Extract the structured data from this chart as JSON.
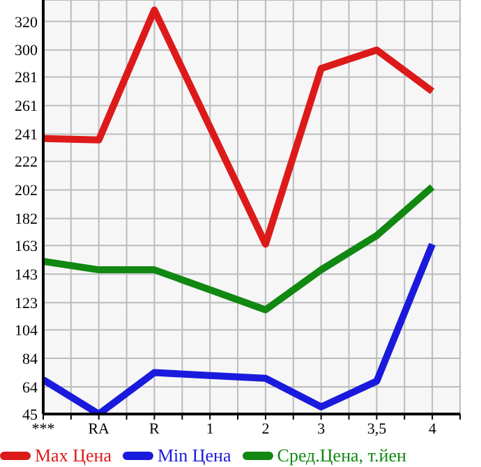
{
  "chart_data": {
    "type": "line",
    "categories": [
      "***",
      "RA",
      "R",
      "1",
      "2",
      "3",
      "3,5",
      "4"
    ],
    "series": [
      {
        "name": "Max Цена",
        "color": "#dd1a1a",
        "values": [
          238,
          237,
          328,
          246,
          164,
          287,
          300,
          271
        ]
      },
      {
        "name": "Min Цена",
        "color": "#1a1add",
        "values": [
          69,
          45,
          74,
          72,
          70,
          50,
          68,
          164
        ]
      },
      {
        "name": "Сред.Цена, т.йен",
        "color": "#118811",
        "values": [
          152,
          146,
          146,
          132,
          118,
          146,
          170,
          204
        ]
      }
    ],
    "ylim": [
      45,
      335
    ],
    "yticks": [
      45,
      64,
      84,
      104,
      123,
      143,
      163,
      182,
      202,
      222,
      241,
      261,
      281,
      300,
      320
    ],
    "grid": true,
    "legend": "bottom",
    "marker": "none",
    "line_style": "solid"
  }
}
